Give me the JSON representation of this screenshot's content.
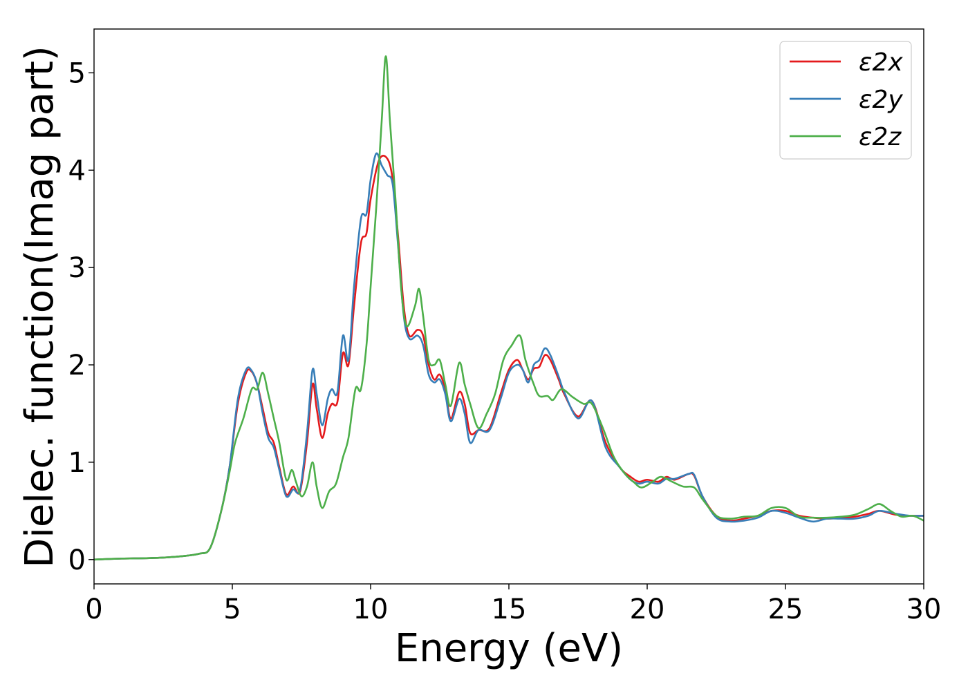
{
  "chart_data": {
    "type": "line",
    "title": "",
    "xlabel": "Energy (eV)",
    "ylabel": "Dielec. function(Imag part)",
    "xlim": [
      0,
      30
    ],
    "ylim": [
      -0.25,
      5.45
    ],
    "xticks": [
      0,
      5,
      10,
      15,
      20,
      25,
      30
    ],
    "xtick_labels": [
      "0",
      "5",
      "10",
      "15",
      "20",
      "25",
      "30"
    ],
    "yticks": [
      0,
      1,
      2,
      3,
      4,
      5
    ],
    "ytick_labels": [
      "0",
      "1",
      "2",
      "3",
      "4",
      "5"
    ],
    "grid": false,
    "legend_position": "top-right",
    "series": [
      {
        "name": "ε2x",
        "color": "#e41a1c",
        "points": [
          [
            0,
            0.0
          ],
          [
            1,
            0.01
          ],
          [
            2,
            0.015
          ],
          [
            3,
            0.03
          ],
          [
            3.8,
            0.06
          ],
          [
            4.2,
            0.12
          ],
          [
            4.6,
            0.5
          ],
          [
            4.9,
            0.95
          ],
          [
            5.2,
            1.6
          ],
          [
            5.5,
            1.92
          ],
          [
            5.7,
            1.93
          ],
          [
            5.9,
            1.8
          ],
          [
            6.1,
            1.55
          ],
          [
            6.3,
            1.3
          ],
          [
            6.5,
            1.2
          ],
          [
            6.7,
            0.95
          ],
          [
            6.95,
            0.67
          ],
          [
            7.2,
            0.75
          ],
          [
            7.45,
            0.7
          ],
          [
            7.7,
            1.2
          ],
          [
            7.9,
            1.8
          ],
          [
            8.05,
            1.55
          ],
          [
            8.25,
            1.25
          ],
          [
            8.45,
            1.5
          ],
          [
            8.6,
            1.6
          ],
          [
            8.8,
            1.62
          ],
          [
            9.0,
            2.12
          ],
          [
            9.2,
            2.0
          ],
          [
            9.4,
            2.6
          ],
          [
            9.65,
            3.25
          ],
          [
            9.85,
            3.35
          ],
          [
            10.0,
            3.7
          ],
          [
            10.3,
            4.1
          ],
          [
            10.6,
            4.12
          ],
          [
            10.8,
            3.9
          ],
          [
            11.0,
            3.3
          ],
          [
            11.2,
            2.6
          ],
          [
            11.4,
            2.3
          ],
          [
            11.7,
            2.36
          ],
          [
            11.9,
            2.3
          ],
          [
            12.1,
            2.0
          ],
          [
            12.3,
            1.85
          ],
          [
            12.5,
            1.9
          ],
          [
            12.7,
            1.75
          ],
          [
            12.9,
            1.45
          ],
          [
            13.2,
            1.72
          ],
          [
            13.4,
            1.6
          ],
          [
            13.6,
            1.3
          ],
          [
            13.9,
            1.33
          ],
          [
            14.3,
            1.35
          ],
          [
            14.7,
            1.7
          ],
          [
            15.0,
            1.95
          ],
          [
            15.3,
            2.05
          ],
          [
            15.5,
            1.95
          ],
          [
            15.7,
            1.85
          ],
          [
            15.9,
            1.96
          ],
          [
            16.1,
            1.98
          ],
          [
            16.3,
            2.1
          ],
          [
            16.5,
            2.05
          ],
          [
            16.8,
            1.85
          ],
          [
            17.0,
            1.7
          ],
          [
            17.5,
            1.47
          ],
          [
            18.0,
            1.63
          ],
          [
            18.5,
            1.2
          ],
          [
            19.0,
            0.95
          ],
          [
            19.4,
            0.85
          ],
          [
            19.7,
            0.8
          ],
          [
            20.0,
            0.82
          ],
          [
            20.4,
            0.8
          ],
          [
            20.7,
            0.85
          ],
          [
            21.0,
            0.82
          ],
          [
            21.5,
            0.88
          ],
          [
            21.7,
            0.86
          ],
          [
            22.0,
            0.65
          ],
          [
            22.5,
            0.45
          ],
          [
            23.0,
            0.4
          ],
          [
            23.5,
            0.42
          ],
          [
            24.0,
            0.45
          ],
          [
            24.5,
            0.5
          ],
          [
            25.0,
            0.5
          ],
          [
            25.5,
            0.45
          ],
          [
            26.0,
            0.43
          ],
          [
            26.5,
            0.42
          ],
          [
            27.0,
            0.43
          ],
          [
            27.5,
            0.44
          ],
          [
            28.0,
            0.47
          ],
          [
            28.4,
            0.5
          ],
          [
            29.0,
            0.46
          ],
          [
            29.5,
            0.45
          ],
          [
            30.0,
            0.45
          ]
        ]
      },
      {
        "name": "ε2y",
        "color": "#377eb8",
        "points": [
          [
            0,
            0.0
          ],
          [
            1,
            0.01
          ],
          [
            2,
            0.015
          ],
          [
            3,
            0.03
          ],
          [
            3.8,
            0.06
          ],
          [
            4.2,
            0.12
          ],
          [
            4.6,
            0.5
          ],
          [
            4.9,
            0.95
          ],
          [
            5.2,
            1.65
          ],
          [
            5.5,
            1.95
          ],
          [
            5.7,
            1.94
          ],
          [
            5.9,
            1.8
          ],
          [
            6.1,
            1.5
          ],
          [
            6.3,
            1.25
          ],
          [
            6.5,
            1.15
          ],
          [
            6.7,
            0.92
          ],
          [
            6.95,
            0.65
          ],
          [
            7.2,
            0.72
          ],
          [
            7.45,
            0.72
          ],
          [
            7.7,
            1.3
          ],
          [
            7.9,
            1.95
          ],
          [
            8.05,
            1.7
          ],
          [
            8.25,
            1.38
          ],
          [
            8.45,
            1.65
          ],
          [
            8.6,
            1.75
          ],
          [
            8.8,
            1.72
          ],
          [
            9.0,
            2.3
          ],
          [
            9.2,
            2.05
          ],
          [
            9.4,
            2.8
          ],
          [
            9.65,
            3.5
          ],
          [
            9.85,
            3.55
          ],
          [
            10.0,
            3.9
          ],
          [
            10.2,
            4.17
          ],
          [
            10.4,
            4.05
          ],
          [
            10.6,
            3.95
          ],
          [
            10.8,
            3.85
          ],
          [
            11.0,
            3.2
          ],
          [
            11.2,
            2.5
          ],
          [
            11.4,
            2.27
          ],
          [
            11.7,
            2.3
          ],
          [
            11.9,
            2.2
          ],
          [
            12.1,
            1.9
          ],
          [
            12.3,
            1.82
          ],
          [
            12.5,
            1.85
          ],
          [
            12.7,
            1.7
          ],
          [
            12.9,
            1.42
          ],
          [
            13.2,
            1.65
          ],
          [
            13.4,
            1.5
          ],
          [
            13.6,
            1.2
          ],
          [
            13.9,
            1.33
          ],
          [
            14.3,
            1.33
          ],
          [
            14.7,
            1.65
          ],
          [
            15.0,
            1.92
          ],
          [
            15.3,
            2.0
          ],
          [
            15.5,
            1.95
          ],
          [
            15.7,
            1.82
          ],
          [
            15.9,
            2.0
          ],
          [
            16.1,
            2.05
          ],
          [
            16.3,
            2.17
          ],
          [
            16.5,
            2.1
          ],
          [
            16.8,
            1.88
          ],
          [
            17.0,
            1.72
          ],
          [
            17.5,
            1.45
          ],
          [
            18.0,
            1.63
          ],
          [
            18.5,
            1.15
          ],
          [
            19.0,
            0.95
          ],
          [
            19.4,
            0.82
          ],
          [
            19.7,
            0.78
          ],
          [
            20.0,
            0.8
          ],
          [
            20.4,
            0.78
          ],
          [
            20.7,
            0.83
          ],
          [
            21.0,
            0.83
          ],
          [
            21.5,
            0.88
          ],
          [
            21.7,
            0.87
          ],
          [
            22.0,
            0.65
          ],
          [
            22.5,
            0.43
          ],
          [
            23.0,
            0.39
          ],
          [
            23.5,
            0.4
          ],
          [
            24.0,
            0.43
          ],
          [
            24.5,
            0.5
          ],
          [
            25.0,
            0.48
          ],
          [
            25.5,
            0.43
          ],
          [
            26.0,
            0.39
          ],
          [
            26.5,
            0.42
          ],
          [
            27.0,
            0.42
          ],
          [
            27.5,
            0.42
          ],
          [
            28.0,
            0.45
          ],
          [
            28.4,
            0.5
          ],
          [
            29.0,
            0.47
          ],
          [
            29.5,
            0.45
          ],
          [
            30.0,
            0.45
          ]
        ]
      },
      {
        "name": "ε2z",
        "color": "#4daf4a",
        "points": [
          [
            0,
            0.0
          ],
          [
            1,
            0.01
          ],
          [
            2,
            0.015
          ],
          [
            3,
            0.03
          ],
          [
            3.8,
            0.06
          ],
          [
            4.2,
            0.12
          ],
          [
            4.6,
            0.5
          ],
          [
            4.9,
            0.9
          ],
          [
            5.1,
            1.2
          ],
          [
            5.4,
            1.45
          ],
          [
            5.7,
            1.75
          ],
          [
            5.9,
            1.75
          ],
          [
            6.1,
            1.92
          ],
          [
            6.3,
            1.7
          ],
          [
            6.5,
            1.45
          ],
          [
            6.7,
            1.2
          ],
          [
            6.95,
            0.82
          ],
          [
            7.15,
            0.92
          ],
          [
            7.3,
            0.8
          ],
          [
            7.5,
            0.65
          ],
          [
            7.7,
            0.75
          ],
          [
            7.9,
            1.0
          ],
          [
            8.05,
            0.75
          ],
          [
            8.25,
            0.53
          ],
          [
            8.5,
            0.7
          ],
          [
            8.75,
            0.78
          ],
          [
            9.0,
            1.05
          ],
          [
            9.2,
            1.25
          ],
          [
            9.45,
            1.75
          ],
          [
            9.65,
            1.75
          ],
          [
            9.85,
            2.2
          ],
          [
            10.0,
            2.8
          ],
          [
            10.2,
            3.6
          ],
          [
            10.4,
            4.5
          ],
          [
            10.55,
            5.17
          ],
          [
            10.7,
            4.5
          ],
          [
            10.9,
            3.7
          ],
          [
            11.1,
            2.8
          ],
          [
            11.3,
            2.4
          ],
          [
            11.6,
            2.6
          ],
          [
            11.75,
            2.78
          ],
          [
            11.9,
            2.5
          ],
          [
            12.1,
            2.05
          ],
          [
            12.3,
            2.0
          ],
          [
            12.5,
            2.05
          ],
          [
            12.7,
            1.8
          ],
          [
            12.9,
            1.58
          ],
          [
            13.2,
            2.02
          ],
          [
            13.4,
            1.8
          ],
          [
            13.6,
            1.6
          ],
          [
            13.9,
            1.35
          ],
          [
            14.2,
            1.5
          ],
          [
            14.5,
            1.7
          ],
          [
            14.8,
            2.05
          ],
          [
            15.1,
            2.2
          ],
          [
            15.4,
            2.3
          ],
          [
            15.6,
            2.05
          ],
          [
            15.9,
            1.8
          ],
          [
            16.1,
            1.68
          ],
          [
            16.4,
            1.68
          ],
          [
            16.6,
            1.64
          ],
          [
            16.9,
            1.75
          ],
          [
            17.3,
            1.67
          ],
          [
            17.7,
            1.6
          ],
          [
            18.0,
            1.6
          ],
          [
            18.4,
            1.35
          ],
          [
            18.8,
            1.05
          ],
          [
            19.2,
            0.88
          ],
          [
            19.5,
            0.8
          ],
          [
            19.8,
            0.74
          ],
          [
            20.2,
            0.8
          ],
          [
            20.5,
            0.85
          ],
          [
            20.9,
            0.8
          ],
          [
            21.3,
            0.75
          ],
          [
            21.7,
            0.74
          ],
          [
            22.0,
            0.62
          ],
          [
            22.5,
            0.45
          ],
          [
            23.0,
            0.42
          ],
          [
            23.5,
            0.44
          ],
          [
            24.0,
            0.45
          ],
          [
            24.5,
            0.53
          ],
          [
            25.0,
            0.53
          ],
          [
            25.5,
            0.44
          ],
          [
            26.0,
            0.43
          ],
          [
            26.5,
            0.43
          ],
          [
            27.0,
            0.44
          ],
          [
            27.5,
            0.46
          ],
          [
            28.0,
            0.52
          ],
          [
            28.4,
            0.57
          ],
          [
            28.8,
            0.5
          ],
          [
            29.2,
            0.44
          ],
          [
            29.6,
            0.45
          ],
          [
            30.0,
            0.4
          ]
        ]
      }
    ]
  }
}
